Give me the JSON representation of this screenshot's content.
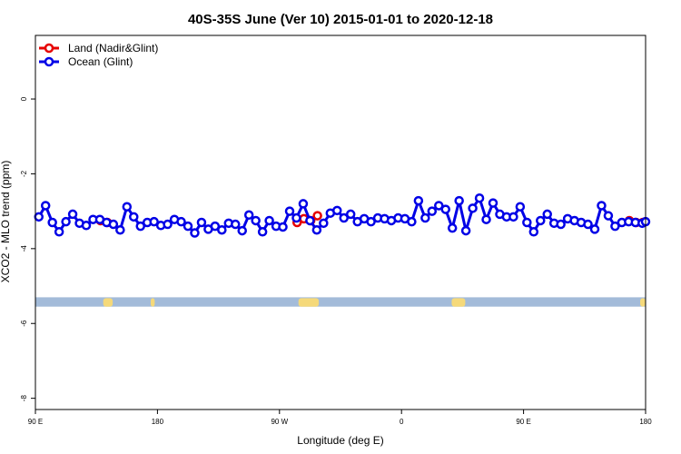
{
  "chart_data": {
    "type": "line",
    "title": "40S-35S June (Ver 10)   2015-01-01 to 2020-12-18",
    "xlabel": "Longitude (deg E)",
    "ylabel": "XCO2 - MLO trend (ppm)",
    "xlim": [
      90,
      540
    ],
    "ylim": [
      -8.3,
      1.7
    ],
    "x_ticks": [
      {
        "value": 90,
        "label": "90 E"
      },
      {
        "value": 180,
        "label": "180"
      },
      {
        "value": 270,
        "label": "90 W"
      },
      {
        "value": 360,
        "label": "0"
      },
      {
        "value": 450,
        "label": "90 E"
      },
      {
        "value": 540,
        "label": "180"
      }
    ],
    "y_ticks": [
      {
        "value": 0,
        "label": "0"
      },
      {
        "value": -2,
        "label": "-2"
      },
      {
        "value": -4,
        "label": "-4"
      },
      {
        "value": -6,
        "label": "-6"
      },
      {
        "value": -8,
        "label": "-8"
      }
    ],
    "legend_position": "top-left",
    "map_strip": {
      "y_top": -5.3,
      "y_bottom": -5.55,
      "ocean_color": "#a3bbd9",
      "land_color": "#f5d97a",
      "land_segments": [
        [
          140,
          147
        ],
        [
          175,
          178
        ],
        [
          284,
          299
        ],
        [
          397,
          407
        ],
        [
          536,
          540
        ]
      ]
    },
    "series": [
      {
        "name": "Land (Nadir&Glint)",
        "color": "#e60000",
        "x": [
          138,
          143,
          283,
          288,
          293,
          298,
          528,
          533,
          538
        ],
        "y": [
          -3.25,
          -3.3,
          -3.3,
          -3.2,
          -3.25,
          -3.12,
          -3.25,
          -3.3,
          -3.3
        ]
      },
      {
        "name": "Ocean (Glint)",
        "color": "#0000e6",
        "x": [
          92.5,
          97.5,
          102.5,
          107.5,
          112.5,
          117.5,
          122.5,
          127.5,
          132.5,
          137.5,
          142.5,
          147.5,
          152.5,
          157.5,
          162.5,
          167.5,
          172.5,
          177.5,
          182.5,
          187.5,
          192.5,
          197.5,
          202.5,
          207.5,
          212.5,
          217.5,
          222.5,
          227.5,
          232.5,
          237.5,
          242.5,
          247.5,
          252.5,
          257.5,
          262.5,
          267.5,
          272.5,
          277.5,
          282.5,
          287.5,
          292.5,
          297.5,
          302.5,
          307.5,
          312.5,
          317.5,
          322.5,
          327.5,
          332.5,
          337.5,
          342.5,
          347.5,
          352.5,
          357.5,
          362.5,
          367.5,
          372.5,
          377.5,
          382.5,
          387.5,
          392.5,
          397.5,
          402.5,
          407.5,
          412.5,
          417.5,
          422.5,
          427.5,
          432.5,
          437.5,
          442.5,
          447.5,
          452.5,
          457.5,
          462.5,
          467.5,
          472.5,
          477.5,
          482.5,
          487.5,
          492.5,
          497.5,
          502.5,
          507.5,
          512.5,
          517.5,
          522.5,
          527.5,
          532.5,
          537.5,
          540
        ],
        "y": [
          -3.15,
          -2.85,
          -3.3,
          -3.55,
          -3.28,
          -3.08,
          -3.32,
          -3.38,
          -3.22,
          -3.22,
          -3.3,
          -3.35,
          -3.5,
          -2.88,
          -3.15,
          -3.4,
          -3.3,
          -3.28,
          -3.38,
          -3.35,
          -3.22,
          -3.28,
          -3.4,
          -3.58,
          -3.3,
          -3.48,
          -3.4,
          -3.5,
          -3.32,
          -3.35,
          -3.52,
          -3.1,
          -3.25,
          -3.55,
          -3.25,
          -3.4,
          -3.42,
          -3.0,
          -3.18,
          -2.8,
          -3.25,
          -3.5,
          -3.32,
          -3.05,
          -2.98,
          -3.18,
          -3.08,
          -3.28,
          -3.2,
          -3.28,
          -3.18,
          -3.2,
          -3.25,
          -3.18,
          -3.2,
          -3.28,
          -2.72,
          -3.18,
          -3.0,
          -2.85,
          -2.95,
          -3.45,
          -2.72,
          -3.52,
          -2.92,
          -2.65,
          -3.22,
          -2.78,
          -3.08,
          -3.15,
          -3.15,
          -2.88,
          -3.3,
          -3.55,
          -3.25,
          -3.08,
          -3.32,
          -3.35,
          -3.2,
          -3.25,
          -3.3,
          -3.35,
          -3.48,
          -2.85,
          -3.12,
          -3.4,
          -3.3,
          -3.28,
          -3.3,
          -3.32,
          -3.28
        ]
      }
    ]
  }
}
